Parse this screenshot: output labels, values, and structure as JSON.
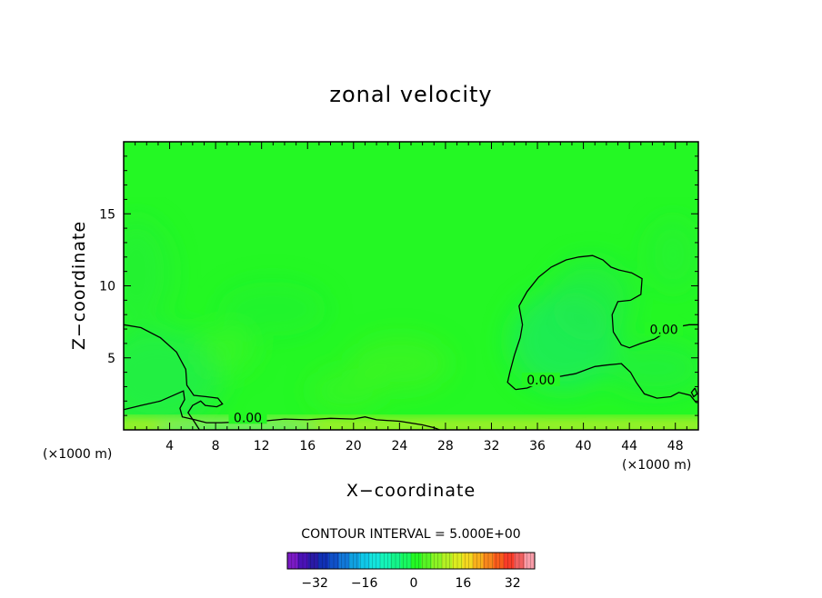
{
  "chart_data": {
    "type": "heatmap",
    "title": "zonal velocity",
    "xlabel": "X−coordinate",
    "ylabel": "Z−coordinate",
    "x_unit_label": "(×1000 m)",
    "x_unit_label_right": "(×1000 m)",
    "xlim": [
      0,
      50
    ],
    "ylim": [
      0,
      20
    ],
    "x_ticks": [
      4,
      8,
      12,
      16,
      20,
      24,
      28,
      32,
      36,
      40,
      44,
      48
    ],
    "x_tick_labels": [
      "4",
      "8",
      "12",
      "16",
      "20",
      "24",
      "28",
      "32",
      "36",
      "40",
      "44",
      "48"
    ],
    "y_ticks": [
      5,
      10,
      15
    ],
    "y_tick_labels": [
      "5",
      "10",
      "15"
    ],
    "field_color": "#24f824",
    "contour_level": 0.0,
    "contour_labels": [
      {
        "text": "0.00",
        "x": 10.8,
        "z": 0.8
      },
      {
        "text": "0.00",
        "x": 36.3,
        "z": 3.4
      },
      {
        "text": "0.00",
        "x": 47.0,
        "z": 6.9
      }
    ],
    "contours": [
      [
        [
          0,
          7.3
        ],
        [
          1.5,
          7.1
        ],
        [
          3.2,
          6.4
        ],
        [
          4.6,
          5.4
        ],
        [
          5.4,
          4.2
        ],
        [
          5.5,
          3.1
        ],
        [
          6.1,
          2.4
        ],
        [
          7.2,
          2.3
        ],
        [
          8.2,
          2.2
        ],
        [
          8.6,
          1.8
        ],
        [
          8.1,
          1.6
        ],
        [
          7.1,
          1.7
        ],
        [
          6.7,
          2.0
        ],
        [
          6.0,
          1.7
        ],
        [
          5.6,
          1.2
        ],
        [
          6.2,
          0.5
        ],
        [
          6.6,
          0
        ]
      ],
      [
        [
          0,
          1.4
        ],
        [
          1.5,
          1.7
        ],
        [
          3.2,
          2.0
        ],
        [
          5.2,
          2.7
        ],
        [
          5.3,
          2.1
        ],
        [
          4.9,
          1.5
        ],
        [
          5.1,
          0.9
        ],
        [
          6.2,
          0.7
        ],
        [
          7.2,
          0.5
        ],
        [
          8.5,
          0.5
        ],
        [
          10,
          0.55
        ],
        [
          12,
          0.6
        ],
        [
          14,
          0.75
        ],
        [
          16,
          0.7
        ],
        [
          18,
          0.8
        ],
        [
          20,
          0.75
        ],
        [
          21,
          0.9
        ],
        [
          22,
          0.7
        ],
        [
          24,
          0.6
        ],
        [
          26,
          0.35
        ],
        [
          27,
          0.15
        ],
        [
          27.5,
          0
        ]
      ],
      [
        [
          34.1,
          2.8
        ],
        [
          35.1,
          2.9
        ],
        [
          37.2,
          3.6
        ],
        [
          39.3,
          3.9
        ],
        [
          41,
          4.4
        ],
        [
          42,
          4.5
        ],
        [
          43.3,
          4.6
        ],
        [
          44.1,
          4.0
        ],
        [
          44.6,
          3.3
        ],
        [
          45.3,
          2.5
        ],
        [
          46.4,
          2.2
        ],
        [
          47.6,
          2.3
        ],
        [
          48.3,
          2.6
        ],
        [
          49.3,
          2.4
        ],
        [
          49.8,
          1.9
        ],
        [
          50,
          1.9
        ]
      ],
      [
        [
          34.1,
          2.8
        ],
        [
          33.4,
          3.3
        ],
        [
          33.6,
          4.0
        ],
        [
          34.0,
          5.2
        ],
        [
          34.5,
          6.4
        ],
        [
          34.7,
          7.3
        ],
        [
          34.4,
          8.6
        ],
        [
          35.1,
          9.6
        ],
        [
          36.1,
          10.6
        ],
        [
          37.2,
          11.3
        ],
        [
          38.5,
          11.8
        ],
        [
          39.6,
          12.0
        ],
        [
          40.8,
          12.1
        ],
        [
          41.7,
          11.8
        ],
        [
          42.4,
          11.3
        ],
        [
          43.1,
          11.1
        ],
        [
          44.2,
          10.9
        ],
        [
          45.1,
          10.5
        ],
        [
          45.0,
          9.4
        ],
        [
          44.1,
          9.0
        ],
        [
          43.0,
          8.9
        ],
        [
          42.5,
          8.0
        ],
        [
          42.6,
          6.8
        ],
        [
          43.3,
          5.9
        ],
        [
          44.0,
          5.7
        ],
        [
          45.0,
          6.0
        ],
        [
          46.2,
          6.3
        ],
        [
          47.8,
          7.1
        ],
        [
          49.2,
          7.3
        ],
        [
          50,
          7.3
        ]
      ],
      [
        [
          49.7,
          2.9
        ],
        [
          49.4,
          2.6
        ],
        [
          49.6,
          2.3
        ],
        [
          49.9,
          2.5
        ],
        [
          49.7,
          2.9
        ]
      ]
    ],
    "colorbar": {
      "tick_values": [
        -32,
        -16,
        0,
        16,
        32
      ],
      "tick_labels": [
        "−32",
        "−16",
        "0",
        "16",
        "32"
      ],
      "range": [
        -40,
        40
      ],
      "contour_interval_label": "CONTOUR INTERVAL = 5.000E+00",
      "colors": [
        "#7a1ac4",
        "#4a12b6",
        "#2a1aa6",
        "#1030b4",
        "#1050c8",
        "#1278d8",
        "#10a0e0",
        "#10c8e8",
        "#14e4dc",
        "#14f4b8",
        "#14f48a",
        "#18f860",
        "#24f824",
        "#58f424",
        "#8cf424",
        "#b4f024",
        "#dcec20",
        "#f4d820",
        "#f8b01c",
        "#f8861c",
        "#f85c1c",
        "#f83c28",
        "#f06060",
        "#f89ca8"
      ]
    }
  }
}
